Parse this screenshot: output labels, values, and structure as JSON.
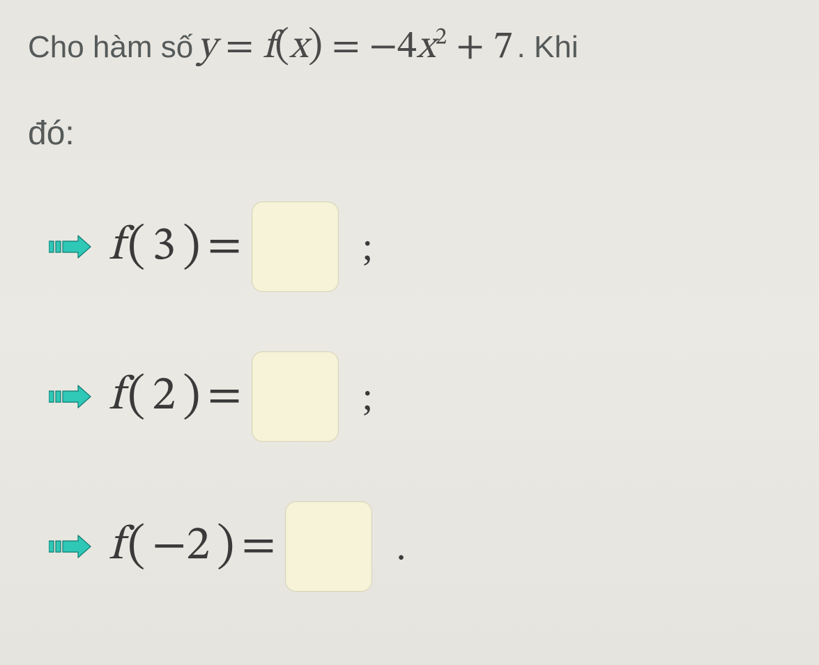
{
  "header": {
    "prose_pre": "Cho hàm số",
    "formula": {
      "lhs_var": "y",
      "eq1": "=",
      "fn_name": "f",
      "fn_arg": "x",
      "eq2": "=",
      "rhs_coef": "−4",
      "rhs_var": "x",
      "rhs_exp": "2",
      "rhs_plus": "+ 7"
    },
    "prose_post": ". Khi"
  },
  "subheader": "đó:",
  "rows": [
    {
      "fn": "f",
      "arg": "3",
      "trail": ";"
    },
    {
      "fn": "f",
      "arg": "2",
      "trail": ";"
    },
    {
      "fn": "f",
      "arg": "−2",
      "trail": "."
    }
  ],
  "style": {
    "arrow_fill": "#2fc7b6",
    "arrow_stroke": "#0f7a70",
    "box_bg": "#f6f3d9",
    "box_border": "#d8d4b8",
    "text_color": "#555a5a",
    "math_color": "#3a3a3a"
  }
}
